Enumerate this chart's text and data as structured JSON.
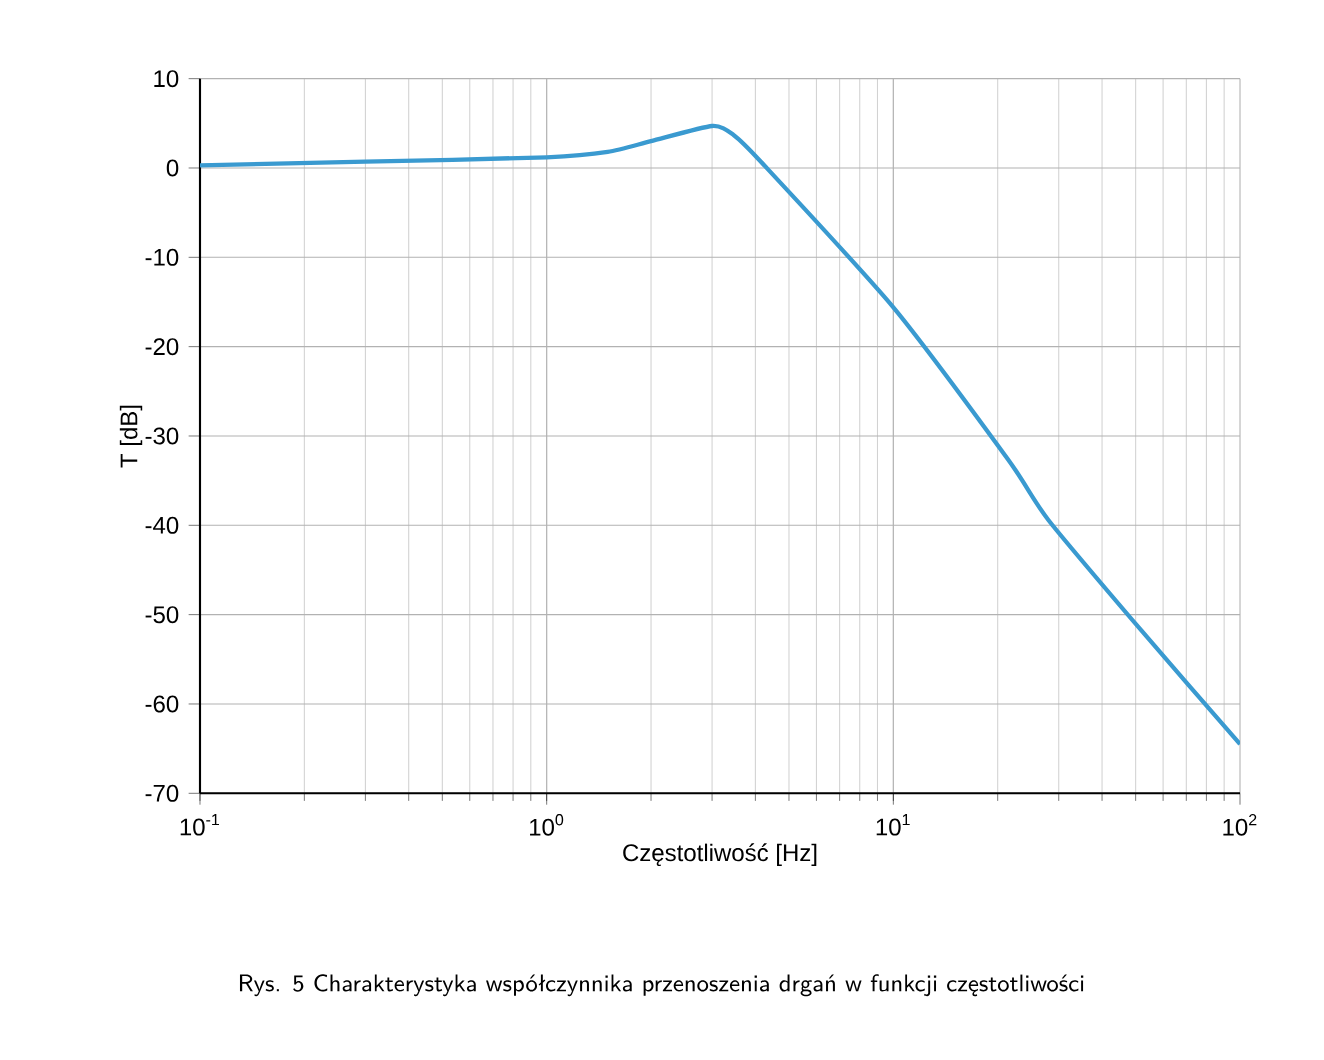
{
  "chart_data": {
    "type": "line",
    "xlabel": "Częstotliwość [Hz]",
    "ylabel": "T [dB]",
    "annotations": [
      "Rys. 5 Charakterystyka współczynnika przenoszenia drgań w funkcji częstotliwości"
    ],
    "log": "x",
    "grid": true,
    "marker": "none",
    "line_style": "solid",
    "xlim": [
      0.1,
      100
    ],
    "ylim": [
      -70,
      10
    ],
    "xticks": [
      {
        "value": 0.1,
        "label": "10$^{-1}$"
      },
      {
        "value": 1,
        "label": "10$^{0}$"
      },
      {
        "value": 10,
        "label": "10$^{1}$"
      },
      {
        "value": 100,
        "label": "10$^{2}$"
      }
    ],
    "yticks": [
      -70,
      -60,
      -50,
      -40,
      -30,
      -20,
      -10,
      0,
      10
    ],
    "series": [
      {
        "color": "#3a9ad0",
        "x": [
          0.1,
          0.3,
          1,
          1.5,
          2,
          3,
          3.46,
          4.15,
          10,
          21.4,
          28,
          52,
          100
        ],
        "values": [
          0.3,
          0.7,
          1.2,
          1.8,
          3.0,
          4.7,
          3.7,
          0.7,
          -15.6,
          -32.6,
          -39.4,
          -51.8,
          -64.5
        ]
      }
    ]
  }
}
